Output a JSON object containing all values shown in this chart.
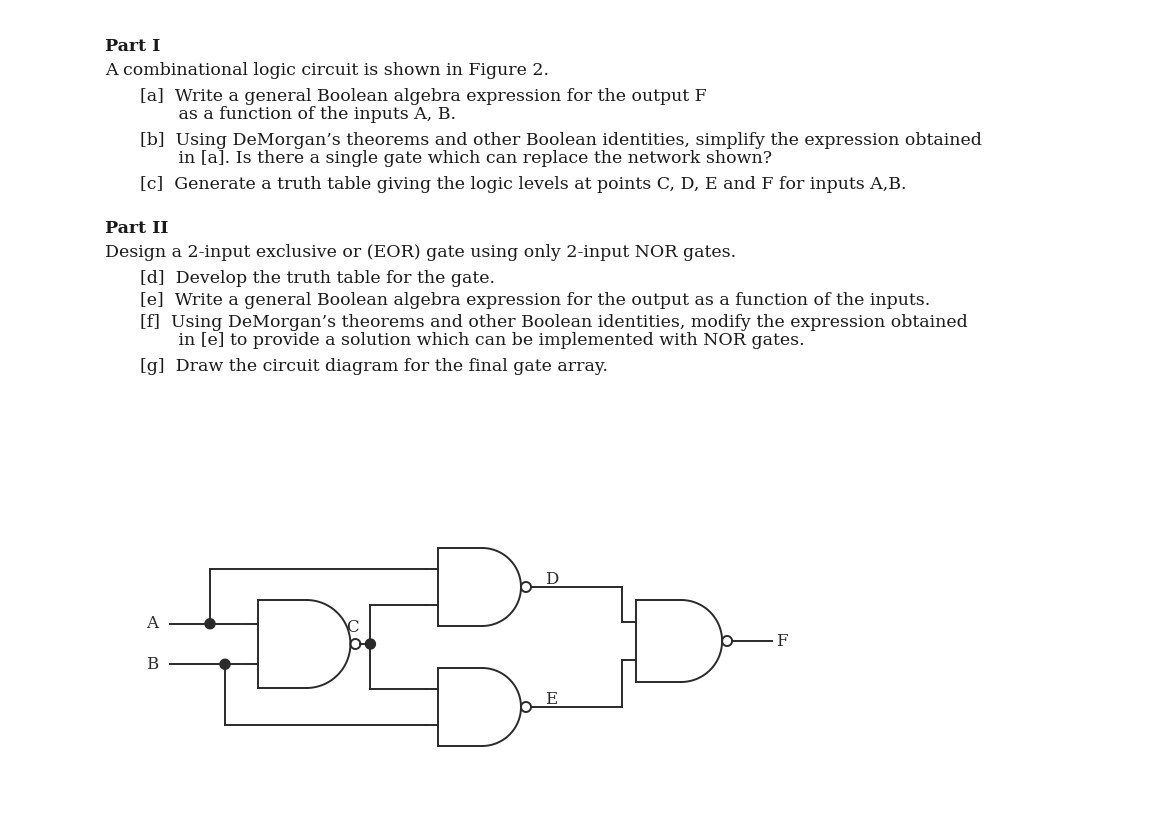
{
  "bg_color": "#ffffff",
  "text_color": "#1a1a1a",
  "line_color": "#2a2a2a",
  "font_family": "serif",
  "part1_title": "Part I",
  "part1_intro": "A combinational logic circuit is shown in Figure 2.",
  "part1_a_line1": "[a]  Write a general Boolean algebra expression for the output F",
  "part1_a_line2": "       as a function of the inputs A, B.",
  "part1_b_line1": "[b]  Using DeMorgan’s theorems and other Boolean identities, simplify the expression obtained",
  "part1_b_line2": "       in [a]. Is there a single gate which can replace the network shown?",
  "part1_c": "[c]  Generate a truth table giving the logic levels at points C, D, E and F for inputs A,B.",
  "part2_title": "Part II",
  "part2_intro": "Design a 2-input exclusive or (EOR) gate using only 2-input NOR gates.",
  "part2_d": "[d]  Develop the truth table for the gate.",
  "part2_e": "[e]  Write a general Boolean algebra expression for the output as a function of the inputs.",
  "part2_f_line1": "[f]  Using DeMorgan’s theorems and other Boolean identities, modify the expression obtained",
  "part2_f_line2": "       in [e] to provide a solution which can be implemented with NOR gates.",
  "part2_g": "[g]  Draw the circuit diagram for the final gate array."
}
